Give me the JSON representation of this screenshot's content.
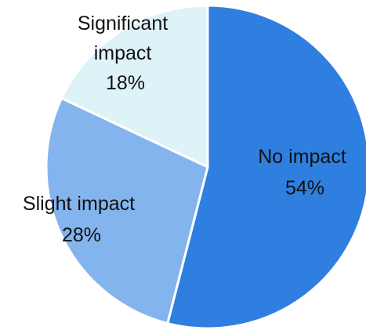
{
  "chart_data": {
    "type": "pie",
    "slices": [
      {
        "label": "No impact",
        "value": 54,
        "value_label": "54%",
        "color": "#2f7fe0"
      },
      {
        "label": "Slight impact",
        "value": 28,
        "value_label": "28%",
        "color": "#84b4ee"
      },
      {
        "label": "Significant impact",
        "label_lines": [
          "Significant",
          "impact"
        ],
        "value": 18,
        "value_label": "18%",
        "color": "#def3f8"
      }
    ],
    "start_angle_deg": 0,
    "direction": "clockwise",
    "legend": "none",
    "labels": "inside"
  }
}
